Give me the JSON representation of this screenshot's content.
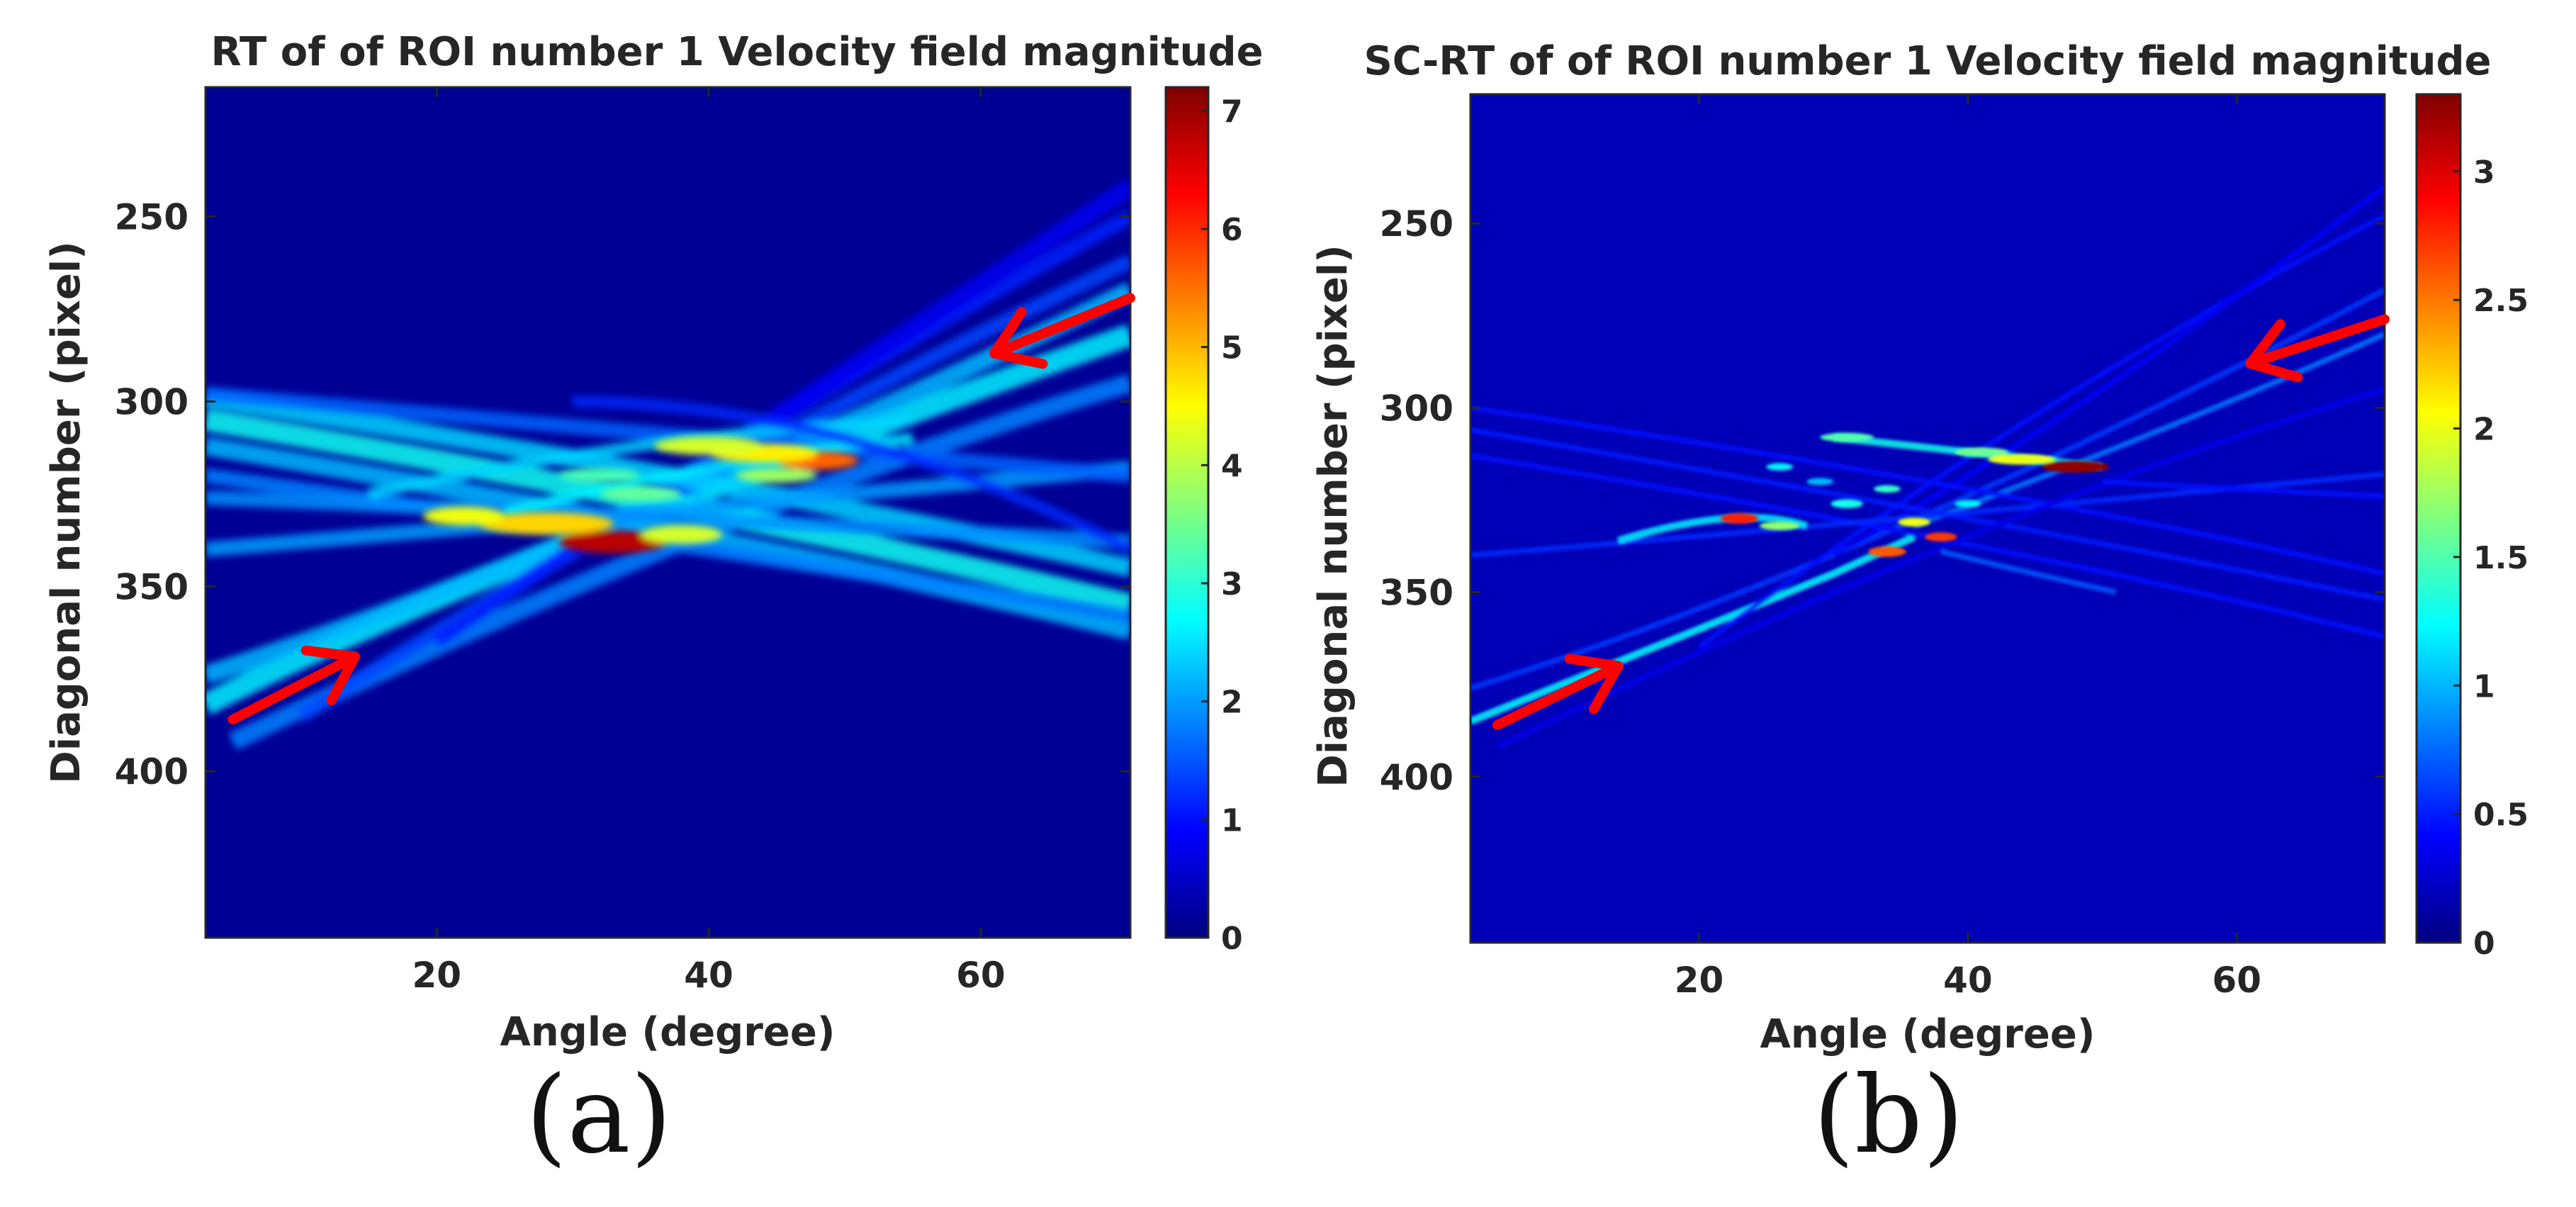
{
  "chart_data": [
    {
      "panel": "(a)",
      "type": "heatmap",
      "title": "RT of of ROI number 1 Velocity field magnitude",
      "xlabel": "Angle (degree)",
      "ylabel": "Diagonal number (pixel)",
      "xlim": [
        3,
        71
      ],
      "ylim": [
        445,
        215
      ],
      "xticks": [
        20,
        40,
        60
      ],
      "yticks": [
        250,
        300,
        350,
        400
      ],
      "colormap": "jet",
      "colorbar": {
        "range": [
          0,
          7.2
        ],
        "ticks": [
          0,
          1,
          2,
          3,
          4,
          5,
          6,
          7
        ]
      },
      "background_value": 0.15,
      "arrows": [
        {
          "from": [
            5,
            386
          ],
          "to": [
            14,
            369
          ]
        },
        {
          "from": [
            71,
            272
          ],
          "to": [
            61,
            287
          ]
        }
      ],
      "bands": [
        {
          "x": [
            3,
            30,
            71
          ],
          "y": [
            382,
            338,
            282
          ],
          "width": 6,
          "value": 2.6
        },
        {
          "x": [
            3,
            35,
            71
          ],
          "y": [
            374,
            330,
            270
          ],
          "width": 5,
          "value": 2.2
        },
        {
          "x": [
            5,
            40,
            71
          ],
          "y": [
            392,
            335,
            295
          ],
          "width": 5,
          "value": 1.8
        },
        {
          "x": [
            10,
            40,
            71
          ],
          "y": [
            385,
            320,
            262
          ],
          "width": 4,
          "value": 1.4
        },
        {
          "x": [
            20,
            45,
            71
          ],
          "y": [
            365,
            305,
            250
          ],
          "width": 4,
          "value": 1.1
        },
        {
          "x": [
            30,
            50,
            71
          ],
          "y": [
            340,
            292,
            242
          ],
          "width": 5,
          "value": 0.8
        },
        {
          "x": [
            3,
            40,
            71
          ],
          "y": [
            299,
            322,
            345
          ],
          "width": 5,
          "value": 2.4
        },
        {
          "x": [
            3,
            40,
            71
          ],
          "y": [
            305,
            330,
            355
          ],
          "width": 6,
          "value": 2.8
        },
        {
          "x": [
            3,
            40,
            71
          ],
          "y": [
            312,
            337,
            362
          ],
          "width": 5,
          "value": 2.2
        },
        {
          "x": [
            3,
            40,
            71
          ],
          "y": [
            320,
            340,
            358
          ],
          "width": 4,
          "value": 1.8
        },
        {
          "x": [
            3,
            35,
            71
          ],
          "y": [
            340,
            330,
            318
          ],
          "width": 4,
          "value": 2.0
        },
        {
          "x": [
            3,
            40,
            71
          ],
          "y": [
            298,
            310,
            320
          ],
          "width": 4,
          "value": 1.6
        },
        {
          "x": [
            3,
            40,
            71
          ],
          "y": [
            326,
            332,
            338
          ],
          "width": 4,
          "value": 1.9
        },
        {
          "x": [
            15,
            35,
            55
          ],
          "y": [
            325,
            312,
            305
          ],
          "width": 3,
          "value": 2.4
        },
        {
          "x": [
            25,
            40,
            55
          ],
          "y": [
            330,
            318,
            310
          ],
          "width": 3,
          "value": 2.6
        },
        {
          "x": [
            30,
            50,
            71
          ],
          "y": [
            300,
            310,
            340
          ],
          "width": 3,
          "value": 1.2
        }
      ],
      "hotspots": [
        {
          "x": 33,
          "y": 338,
          "rx": 4,
          "ry": 3,
          "value": 6.8
        },
        {
          "x": 28,
          "y": 333,
          "rx": 5,
          "ry": 3,
          "value": 4.8
        },
        {
          "x": 22,
          "y": 331,
          "rx": 3,
          "ry": 2.5,
          "value": 4.4
        },
        {
          "x": 38,
          "y": 336,
          "rx": 3,
          "ry": 2.5,
          "value": 4.2
        },
        {
          "x": 48,
          "y": 316,
          "rx": 3,
          "ry": 2.5,
          "value": 5.6
        },
        {
          "x": 44,
          "y": 314,
          "rx": 4,
          "ry": 2.5,
          "value": 4.6
        },
        {
          "x": 40,
          "y": 312,
          "rx": 4,
          "ry": 2.5,
          "value": 4.2
        },
        {
          "x": 45,
          "y": 320,
          "rx": 3,
          "ry": 2,
          "value": 3.8
        },
        {
          "x": 32,
          "y": 320,
          "rx": 3,
          "ry": 2,
          "value": 3.2
        },
        {
          "x": 35,
          "y": 325,
          "rx": 3,
          "ry": 2,
          "value": 3.4
        }
      ]
    },
    {
      "panel": "(b)",
      "type": "heatmap",
      "title": "SC-RT of of ROI number 1 Velocity field magnitude",
      "xlabel": "Angle (degree)",
      "ylabel": "Diagonal number (pixel)",
      "xlim": [
        3,
        71
      ],
      "ylim": [
        445,
        215
      ],
      "xticks": [
        20,
        40,
        60
      ],
      "yticks": [
        250,
        300,
        350,
        400
      ],
      "colormap": "jet",
      "colorbar": {
        "range": [
          0,
          3.3
        ],
        "ticks": [
          "0",
          "0.5",
          "1",
          "1.5",
          "2",
          "2.5",
          "3"
        ]
      },
      "background_value": 0.18,
      "arrows": [
        {
          "from": [
            5,
            386
          ],
          "to": [
            14,
            370
          ]
        },
        {
          "from": [
            71,
            276
          ],
          "to": [
            61,
            288
          ]
        }
      ],
      "bands": [
        {
          "x": [
            3,
            20,
            30,
            36
          ],
          "y": [
            385,
            360,
            345,
            335
          ],
          "width": 2,
          "value": 1.25
        },
        {
          "x": [
            3,
            35,
            71
          ],
          "y": [
            376,
            332,
            268
          ],
          "width": 1.5,
          "value": 0.6
        },
        {
          "x": [
            36,
            55,
            71
          ],
          "y": [
            332,
            305,
            280
          ],
          "width": 1.5,
          "value": 0.8
        },
        {
          "x": [
            20,
            45,
            71
          ],
          "y": [
            365,
            302,
            248
          ],
          "width": 1.5,
          "value": 0.45
        },
        {
          "x": [
            30,
            50,
            71
          ],
          "y": [
            340,
            295,
            240
          ],
          "width": 1.5,
          "value": 0.4
        },
        {
          "x": [
            3,
            40,
            71
          ],
          "y": [
            300,
            322,
            345
          ],
          "width": 1.5,
          "value": 0.45
        },
        {
          "x": [
            3,
            40,
            71
          ],
          "y": [
            306,
            330,
            352
          ],
          "width": 1.5,
          "value": 0.5
        },
        {
          "x": [
            3,
            40,
            71
          ],
          "y": [
            313,
            337,
            362
          ],
          "width": 1.5,
          "value": 0.45
        },
        {
          "x": [
            3,
            35,
            71
          ],
          "y": [
            340,
            330,
            318
          ],
          "width": 1.5,
          "value": 0.55
        },
        {
          "x": [
            5,
            40,
            71
          ],
          "y": [
            392,
            335,
            295
          ],
          "width": 1.5,
          "value": 0.35
        },
        {
          "x": [
            30,
            40,
            50
          ],
          "y": [
            308,
            312,
            316
          ],
          "width": 2,
          "value": 1.3
        },
        {
          "x": [
            14,
            22,
            28
          ],
          "y": [
            336,
            330,
            332
          ],
          "width": 2,
          "value": 1.2
        },
        {
          "x": [
            38,
            45,
            51
          ],
          "y": [
            339,
            345,
            350
          ],
          "width": 1.5,
          "value": 0.7
        },
        {
          "x": [
            50,
            60,
            71
          ],
          "y": [
            320,
            322,
            324
          ],
          "width": 1.5,
          "value": 0.45
        }
      ],
      "hotspots": [
        {
          "x": 48,
          "y": 316,
          "rx": 2.5,
          "ry": 1.6,
          "value": 3.25
        },
        {
          "x": 23,
          "y": 330,
          "rx": 1.4,
          "ry": 1.4,
          "value": 2.8
        },
        {
          "x": 34,
          "y": 339,
          "rx": 1.4,
          "ry": 1.4,
          "value": 2.6
        },
        {
          "x": 38,
          "y": 335,
          "rx": 1.2,
          "ry": 1.2,
          "value": 2.7
        },
        {
          "x": 44,
          "y": 314,
          "rx": 2.5,
          "ry": 1.4,
          "value": 2.0
        },
        {
          "x": 36,
          "y": 331,
          "rx": 1.2,
          "ry": 1.2,
          "value": 2.0
        },
        {
          "x": 41,
          "y": 312,
          "rx": 2.0,
          "ry": 1.2,
          "value": 1.6
        },
        {
          "x": 31,
          "y": 308,
          "rx": 2.0,
          "ry": 1.2,
          "value": 1.5
        },
        {
          "x": 26,
          "y": 332,
          "rx": 1.5,
          "ry": 1.2,
          "value": 1.7
        },
        {
          "x": 31,
          "y": 326,
          "rx": 1.2,
          "ry": 1.2,
          "value": 1.3
        },
        {
          "x": 26,
          "y": 316,
          "rx": 1.0,
          "ry": 1.0,
          "value": 1.2
        },
        {
          "x": 34,
          "y": 322,
          "rx": 1.0,
          "ry": 1.0,
          "value": 1.4
        },
        {
          "x": 40,
          "y": 326,
          "rx": 1.0,
          "ry": 1.0,
          "value": 1.2
        },
        {
          "x": 29,
          "y": 320,
          "rx": 1.0,
          "ry": 1.0,
          "value": 1.0
        }
      ]
    }
  ],
  "captions": [
    "(a)",
    "(b)"
  ]
}
